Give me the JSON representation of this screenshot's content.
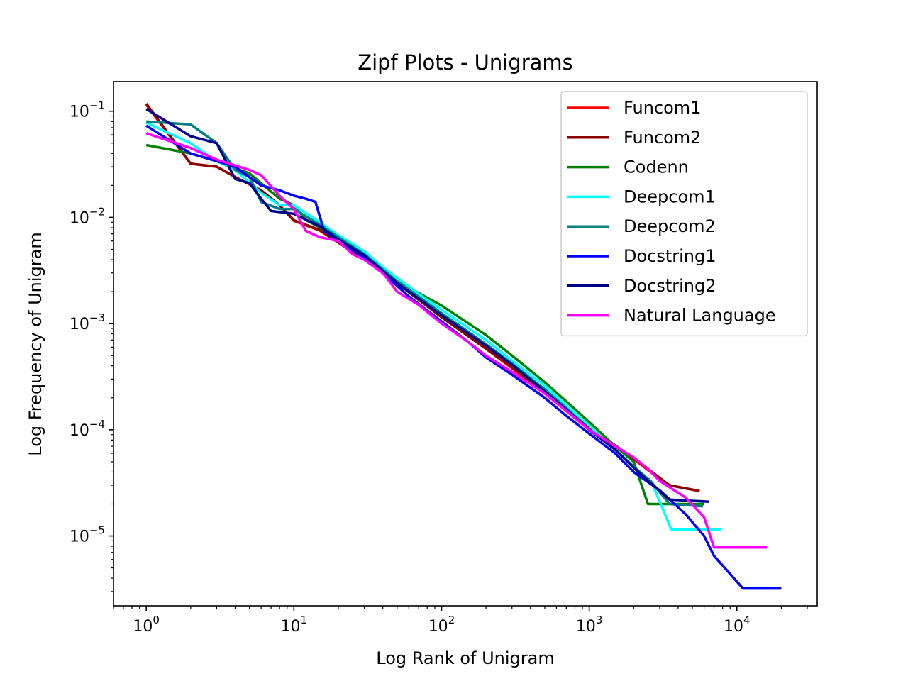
{
  "chart_data": {
    "type": "line",
    "title": "Zipf Plots - Unigrams",
    "xlabel": "Log Rank of Unigram",
    "ylabel": "Log Frequency of Unigram",
    "xscale": "log",
    "yscale": "log",
    "xlim": [
      0.6,
      35000
    ],
    "ylim": [
      2.2e-06,
      0.19
    ],
    "x_ticks": [
      {
        "base": "10",
        "exp": "0",
        "value": 1
      },
      {
        "base": "10",
        "exp": "1",
        "value": 10
      },
      {
        "base": "10",
        "exp": "2",
        "value": 100
      },
      {
        "base": "10",
        "exp": "3",
        "value": 1000
      },
      {
        "base": "10",
        "exp": "4",
        "value": 10000
      }
    ],
    "y_ticks": [
      {
        "base": "10",
        "exp": "−1",
        "value": 0.1
      },
      {
        "base": "10",
        "exp": "−2",
        "value": 0.01
      },
      {
        "base": "10",
        "exp": "−3",
        "value": 0.001
      },
      {
        "base": "10",
        "exp": "−4",
        "value": 0.0001
      },
      {
        "base": "10",
        "exp": "−5",
        "value": 1e-05
      }
    ],
    "grid": false,
    "legend_position": "top-right",
    "series": [
      {
        "name": "Funcom1",
        "color": "#ff0000",
        "points": [
          [
            1,
            0.115
          ],
          [
            2,
            0.032
          ],
          [
            3,
            0.03
          ],
          [
            4,
            0.024
          ],
          [
            6,
            0.018
          ],
          [
            8,
            0.013
          ],
          [
            10,
            0.0093
          ],
          [
            15,
            0.0075
          ],
          [
            20,
            0.0058
          ],
          [
            30,
            0.004
          ],
          [
            50,
            0.0024
          ],
          [
            100,
            0.00115
          ],
          [
            200,
            0.00058
          ],
          [
            300,
            0.00038
          ],
          [
            500,
            0.00022
          ],
          [
            700,
            0.000155
          ],
          [
            1000,
            0.000105
          ],
          [
            1500,
            7e-05
          ],
          [
            2000,
            5.3e-05
          ],
          [
            2600,
            4e-05
          ],
          [
            3500,
            3e-05
          ],
          [
            5600,
            2.65e-05
          ]
        ]
      },
      {
        "name": "Funcom2",
        "color": "#8b0000",
        "points": [
          [
            1,
            0.118
          ],
          [
            2,
            0.032
          ],
          [
            3,
            0.03
          ],
          [
            4,
            0.024
          ],
          [
            6,
            0.018
          ],
          [
            8,
            0.013
          ],
          [
            10,
            0.0094
          ],
          [
            15,
            0.0076
          ],
          [
            20,
            0.0058
          ],
          [
            30,
            0.004
          ],
          [
            50,
            0.0024
          ],
          [
            100,
            0.00115
          ],
          [
            200,
            0.00058
          ],
          [
            300,
            0.00039
          ],
          [
            500,
            0.00022
          ],
          [
            700,
            0.000158
          ],
          [
            1000,
            0.000107
          ],
          [
            1500,
            7.1e-05
          ],
          [
            2000,
            5.4e-05
          ],
          [
            2600,
            4.1e-05
          ],
          [
            3500,
            3e-05
          ],
          [
            5600,
            2.65e-05
          ]
        ]
      },
      {
        "name": "Codenn",
        "color": "#008000",
        "points": [
          [
            1,
            0.048
          ],
          [
            2,
            0.04
          ],
          [
            3,
            0.034
          ],
          [
            4,
            0.029
          ],
          [
            5,
            0.026
          ],
          [
            6,
            0.021
          ],
          [
            8,
            0.015
          ],
          [
            10,
            0.013
          ],
          [
            12,
            0.0095
          ],
          [
            15,
            0.008
          ],
          [
            20,
            0.0062
          ],
          [
            30,
            0.0042
          ],
          [
            50,
            0.0025
          ],
          [
            100,
            0.00148
          ],
          [
            200,
            0.00078
          ],
          [
            300,
            0.0005
          ],
          [
            500,
            0.00028
          ],
          [
            700,
            0.000185
          ],
          [
            1000,
            0.000118
          ],
          [
            1500,
            7e-05
          ],
          [
            2000,
            5e-05
          ],
          [
            2500,
            2e-05
          ],
          [
            6000,
            2e-05
          ]
        ]
      },
      {
        "name": "Deepcom1",
        "color": "#00ffff",
        "points": [
          [
            1,
            0.078
          ],
          [
            2,
            0.05
          ],
          [
            3,
            0.034
          ],
          [
            4,
            0.028
          ],
          [
            6,
            0.017
          ],
          [
            8,
            0.013
          ],
          [
            10,
            0.013
          ],
          [
            15,
            0.009
          ],
          [
            20,
            0.0068
          ],
          [
            30,
            0.0048
          ],
          [
            40,
            0.0034
          ],
          [
            50,
            0.0027
          ],
          [
            70,
            0.0019
          ],
          [
            100,
            0.00135
          ],
          [
            200,
            0.0007
          ],
          [
            300,
            0.00045
          ],
          [
            500,
            0.00026
          ],
          [
            700,
            0.00017
          ],
          [
            1000,
            0.00011
          ],
          [
            1500,
            6.5e-05
          ],
          [
            2000,
            4.5e-05
          ],
          [
            2700,
            3e-05
          ],
          [
            3600,
            1.15e-05
          ],
          [
            7800,
            1.15e-05
          ]
        ]
      },
      {
        "name": "Deepcom2",
        "color": "#008080",
        "points": [
          [
            1,
            0.08
          ],
          [
            2,
            0.075
          ],
          [
            3,
            0.05
          ],
          [
            4,
            0.028
          ],
          [
            5,
            0.024
          ],
          [
            6,
            0.014
          ],
          [
            8,
            0.012
          ],
          [
            10,
            0.012
          ],
          [
            15,
            0.0085
          ],
          [
            20,
            0.0065
          ],
          [
            30,
            0.0045
          ],
          [
            50,
            0.0025
          ],
          [
            100,
            0.00125
          ],
          [
            200,
            0.00064
          ],
          [
            300,
            0.00042
          ],
          [
            500,
            0.00024
          ],
          [
            700,
            0.00016
          ],
          [
            1000,
            0.0001
          ],
          [
            1500,
            6.5e-05
          ],
          [
            2000,
            4.5e-05
          ],
          [
            2600,
            3.3e-05
          ],
          [
            3500,
            2e-05
          ],
          [
            5900,
            1.9e-05
          ]
        ]
      },
      {
        "name": "Docstring1",
        "color": "#0000ff",
        "points": [
          [
            1,
            0.073
          ],
          [
            2,
            0.04
          ],
          [
            4,
            0.03
          ],
          [
            6,
            0.02
          ],
          [
            8,
            0.018
          ],
          [
            10,
            0.016
          ],
          [
            12,
            0.015
          ],
          [
            14,
            0.014
          ],
          [
            16,
            0.0075
          ],
          [
            20,
            0.006
          ],
          [
            30,
            0.0042
          ],
          [
            40,
            0.003
          ],
          [
            60,
            0.0018
          ],
          [
            100,
            0.00105
          ],
          [
            150,
            0.00068
          ],
          [
            200,
            0.00048
          ],
          [
            300,
            0.00033
          ],
          [
            500,
            0.0002
          ],
          [
            700,
            0.000135
          ],
          [
            1000,
            9.2e-05
          ],
          [
            1500,
            6e-05
          ],
          [
            2000,
            4e-05
          ],
          [
            3000,
            2.7e-05
          ],
          [
            4500,
            1.6e-05
          ],
          [
            6000,
            1e-05
          ],
          [
            7000,
            6.5e-06
          ],
          [
            11000,
            3.2e-06
          ],
          [
            20000,
            3.2e-06
          ]
        ]
      },
      {
        "name": "Docstring2",
        "color": "#00008b",
        "points": [
          [
            1,
            0.105
          ],
          [
            2,
            0.058
          ],
          [
            3,
            0.05
          ],
          [
            4,
            0.023
          ],
          [
            5,
            0.021
          ],
          [
            6,
            0.015
          ],
          [
            7,
            0.0115
          ],
          [
            10,
            0.0108
          ],
          [
            15,
            0.0082
          ],
          [
            20,
            0.0062
          ],
          [
            30,
            0.0044
          ],
          [
            50,
            0.0024
          ],
          [
            100,
            0.0012
          ],
          [
            200,
            0.00062
          ],
          [
            300,
            0.00041
          ],
          [
            500,
            0.00023
          ],
          [
            700,
            0.000155
          ],
          [
            1000,
            0.0001
          ],
          [
            1500,
            6.5e-05
          ],
          [
            2000,
            4.4e-05
          ],
          [
            2700,
            3e-05
          ],
          [
            3500,
            2.2e-05
          ],
          [
            6500,
            2.1e-05
          ]
        ]
      },
      {
        "name": "Natural Language",
        "color": "#ff00ff",
        "points": [
          [
            1,
            0.062
          ],
          [
            2,
            0.045
          ],
          [
            3,
            0.035
          ],
          [
            5,
            0.028
          ],
          [
            6,
            0.025
          ],
          [
            8,
            0.016
          ],
          [
            10,
            0.012
          ],
          [
            12,
            0.0075
          ],
          [
            15,
            0.0065
          ],
          [
            20,
            0.006
          ],
          [
            25,
            0.0045
          ],
          [
            30,
            0.004
          ],
          [
            40,
            0.003
          ],
          [
            50,
            0.002
          ],
          [
            70,
            0.0015
          ],
          [
            100,
            0.001
          ],
          [
            150,
            0.00068
          ],
          [
            200,
            0.0005
          ],
          [
            300,
            0.00035
          ],
          [
            500,
            0.00022
          ],
          [
            700,
            0.00015
          ],
          [
            1000,
            0.0001
          ],
          [
            1500,
            7e-05
          ],
          [
            2000,
            5.5e-05
          ],
          [
            2500,
            4.3e-05
          ],
          [
            3000,
            3.3e-05
          ],
          [
            4500,
            2.3e-05
          ],
          [
            6000,
            1.5e-05
          ],
          [
            7000,
            7.8e-06
          ],
          [
            16000,
            7.8e-06
          ]
        ]
      }
    ]
  }
}
